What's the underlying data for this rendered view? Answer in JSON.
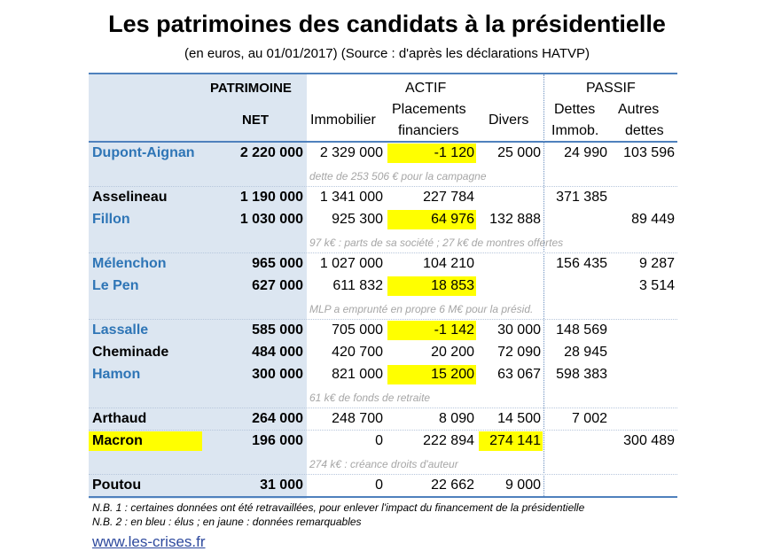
{
  "title": "Les patrimoines des candidats à la présidentielle",
  "subtitle": "(en euros, au 01/01/2017) (Source : d'après les déclarations HATVP)",
  "headers": {
    "patrimoine": "PATRIMOINE",
    "net": "NET",
    "actif": "ACTIF",
    "passif": "PASSIF",
    "immobilier": "Immobilier",
    "placements_1": "Placements",
    "placements_2": "financiers",
    "divers": "Divers",
    "dettes_1": "Dettes",
    "dettes_2": "Immob.",
    "autres_1": "Autres",
    "autres_2": "dettes"
  },
  "rows": [
    {
      "name": "Dupont-Aignan",
      "net": "2 220 000",
      "immobilier": "2 329 000",
      "placements": "-1 120",
      "divers": "25 000",
      "dettes": "24 990",
      "autres": "103 596",
      "note": "dette de 253 506 € pour la campagne"
    },
    {
      "name": "Asselineau",
      "net": "1 190 000",
      "immobilier": "1 341 000",
      "placements": "227 784",
      "divers": "",
      "dettes": "371 385",
      "autres": "",
      "note": ""
    },
    {
      "name": "Fillon",
      "net": "1 030 000",
      "immobilier": "925 300",
      "placements": "64 976",
      "divers": "132 888",
      "dettes": "",
      "autres": "89 449",
      "note": "97 k€ : parts de sa société ; 27 k€ de montres offertes"
    },
    {
      "name": "Mélenchon",
      "net": "965 000",
      "immobilier": "1 027 000",
      "placements": "104 210",
      "divers": "",
      "dettes": "156 435",
      "autres": "9 287",
      "note": ""
    },
    {
      "name": "Le Pen",
      "net": "627 000",
      "immobilier": "611 832",
      "placements": "18 853",
      "divers": "",
      "dettes": "",
      "autres": "3 514",
      "note": "MLP a emprunté en propre 6 M€ pour la présid."
    },
    {
      "name": "Lassalle",
      "net": "585 000",
      "immobilier": "705 000",
      "placements": "-1 142",
      "divers": "30 000",
      "dettes": "148 569",
      "autres": "",
      "note": ""
    },
    {
      "name": "Cheminade",
      "net": "484 000",
      "immobilier": "420 700",
      "placements": "20 200",
      "divers": "72 090",
      "dettes": "28 945",
      "autres": "",
      "note": ""
    },
    {
      "name": "Hamon",
      "net": "300 000",
      "immobilier": "821 000",
      "placements": "15 200",
      "divers": "63 067",
      "dettes": "598 383",
      "autres": "",
      "note": "61 k€ de fonds de retraite"
    },
    {
      "name": "Arthaud",
      "net": "264 000",
      "immobilier": "248 700",
      "placements": "8 090",
      "divers": "14 500",
      "dettes": "7 002",
      "autres": "",
      "note": ""
    },
    {
      "name": "Macron",
      "net": "196 000",
      "immobilier": "0",
      "placements": "222 894",
      "divers": "274 141",
      "dettes": "",
      "autres": "300 489",
      "note": "274 k€ : créance droits d'auteur"
    },
    {
      "name": "Poutou",
      "net": "31 000",
      "immobilier": "0",
      "placements": "22 662",
      "divers": "9 000",
      "dettes": "",
      "autres": "",
      "note": ""
    }
  ],
  "footnotes": {
    "nb1": "N.B. 1 : certaines données ont été retravaillées, pour enlever l'impact du financement de la présidentielle",
    "nb2": "N.B. 2 : en bleu : élus ; en jaune : données remarquables"
  },
  "link": "www.les-crises.fr",
  "colors": {
    "elected_blue": "#2e75b6",
    "highlight_yellow": "#ffff00",
    "net_column_bg": "#dce6f1",
    "border_blue": "#4f81bd"
  }
}
